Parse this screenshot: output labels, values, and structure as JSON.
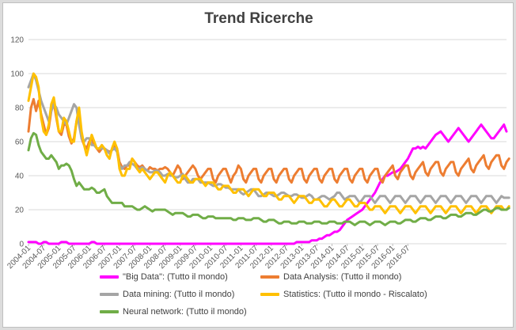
{
  "chart_data": {
    "type": "line",
    "title": "Trend Ricerche",
    "xlabel": "",
    "ylabel": "",
    "ylim": [
      0,
      120
    ],
    "yticks": [
      0,
      20,
      40,
      60,
      80,
      100,
      120
    ],
    "grid": true,
    "legend_position": "bottom",
    "x_start": "2004-01",
    "x_end": "2016-09",
    "xtick_labels": [
      "2004-01",
      "2004-07",
      "2005-01",
      "2005-07",
      "2006-01",
      "2006-07",
      "2007-01",
      "2007-07",
      "2008-01",
      "2008-07",
      "2009-01",
      "2009-07",
      "2010-01",
      "2010-07",
      "2011-01",
      "2011-07",
      "2012-01",
      "2012-07",
      "2013-01",
      "2013-07",
      "2014-01",
      "2014-07",
      "2015-01",
      "2015-07",
      "2016-01",
      "2016-07"
    ],
    "series": [
      {
        "name": "\"Big Data\": (Tutto il mondo)",
        "color": "#ff00ff",
        "values": [
          1,
          1,
          1,
          1,
          0,
          0,
          1,
          1,
          0,
          0,
          0,
          0,
          0,
          1,
          1,
          1,
          0,
          0,
          0,
          0,
          0,
          0,
          0,
          0,
          0,
          1,
          1,
          0,
          0,
          0,
          0,
          0,
          0,
          0,
          0,
          0,
          0,
          0,
          0,
          0,
          0,
          0,
          0,
          0,
          0,
          0,
          0,
          0,
          0,
          0,
          0,
          0,
          0,
          0,
          0,
          0,
          0,
          0,
          0,
          0,
          0,
          0,
          0,
          0,
          0,
          0,
          0,
          0,
          0,
          0,
          0,
          0,
          0,
          0,
          0,
          0,
          0,
          0,
          0,
          0,
          0,
          0,
          0,
          0,
          0,
          0,
          0,
          0,
          0,
          0,
          0,
          0,
          0,
          0,
          0,
          0,
          0,
          0,
          0,
          0,
          0,
          0,
          0,
          0,
          0,
          0,
          1,
          1,
          1,
          1,
          1,
          1,
          2,
          2,
          2,
          3,
          3,
          4,
          5,
          5,
          6,
          7,
          7,
          8,
          10,
          12,
          14,
          15,
          16,
          17,
          18,
          19,
          20,
          22,
          24,
          26,
          28,
          30,
          33,
          36,
          38,
          40,
          40,
          41,
          42,
          42,
          43,
          44,
          46,
          48,
          50,
          53,
          56,
          56,
          57,
          56,
          57,
          56,
          58,
          60,
          62,
          64,
          65,
          66,
          64,
          62,
          60,
          62,
          64,
          66,
          68,
          66,
          64,
          62,
          60,
          62,
          64,
          66,
          68,
          70,
          68,
          66,
          64,
          62,
          62,
          64,
          66,
          68,
          70,
          66
        ]
      },
      {
        "name": "Data Analysis: (Tutto il mondo)",
        "color": "#ed7d31",
        "values": [
          66,
          80,
          85,
          78,
          84,
          76,
          70,
          64,
          68,
          78,
          83,
          74,
          66,
          64,
          70,
          70,
          63,
          59,
          62,
          72,
          78,
          62,
          58,
          56,
          60,
          62,
          58,
          56,
          54,
          56,
          56,
          55,
          54,
          55,
          58,
          56,
          48,
          45,
          44,
          46,
          46,
          50,
          48,
          46,
          45,
          46,
          44,
          43,
          45,
          44,
          44,
          43,
          44,
          44,
          45,
          44,
          42,
          40,
          43,
          46,
          44,
          38,
          40,
          42,
          44,
          46,
          44,
          40,
          38,
          40,
          42,
          44,
          44,
          38,
          36,
          40,
          42,
          44,
          44,
          40,
          36,
          40,
          42,
          46,
          44,
          38,
          36,
          40,
          42,
          44,
          44,
          38,
          36,
          40,
          42,
          44,
          44,
          38,
          36,
          40,
          42,
          44,
          44,
          38,
          36,
          40,
          42,
          44,
          44,
          38,
          36,
          40,
          42,
          44,
          44,
          38,
          36,
          40,
          42,
          44,
          44,
          38,
          36,
          40,
          42,
          44,
          44,
          38,
          36,
          40,
          42,
          44,
          44,
          38,
          36,
          40,
          42,
          44,
          44,
          38,
          36,
          40,
          42,
          44,
          46,
          40,
          38,
          42,
          44,
          46,
          46,
          40,
          38,
          42,
          44,
          46,
          48,
          42,
          40,
          44,
          46,
          48,
          48,
          42,
          40,
          44,
          46,
          48,
          48,
          42,
          40,
          44,
          46,
          48,
          50,
          44,
          42,
          46,
          48,
          50,
          52,
          46,
          44,
          48,
          50,
          52,
          52,
          46,
          44,
          48,
          50
        ]
      },
      {
        "name": "Data mining: (Tutto il mondo)",
        "color": "#a5a5a5",
        "values": [
          92,
          96,
          100,
          96,
          90,
          84,
          80,
          76,
          72,
          78,
          82,
          80,
          76,
          74,
          72,
          70,
          74,
          78,
          82,
          80,
          70,
          62,
          60,
          62,
          62,
          58,
          58,
          56,
          56,
          56,
          56,
          55,
          53,
          55,
          56,
          54,
          46,
          44,
          46,
          46,
          48,
          47,
          46,
          44,
          44,
          45,
          44,
          43,
          42,
          42,
          43,
          43,
          42,
          40,
          40,
          41,
          40,
          40,
          39,
          39,
          40,
          41,
          38,
          36,
          36,
          38,
          38,
          38,
          36,
          36,
          36,
          36,
          35,
          34,
          34,
          35,
          35,
          34,
          33,
          33,
          32,
          32,
          32,
          32,
          30,
          29,
          30,
          31,
          32,
          32,
          30,
          28,
          28,
          29,
          30,
          30,
          29,
          28,
          28,
          29,
          30,
          30,
          29,
          28,
          28,
          29,
          29,
          28,
          27,
          27,
          28,
          29,
          28,
          26,
          26,
          27,
          28,
          28,
          27,
          26,
          27,
          28,
          30,
          30,
          28,
          26,
          27,
          28,
          28,
          28,
          26,
          24,
          26,
          28,
          28,
          28,
          26,
          24,
          26,
          28,
          28,
          28,
          26,
          24,
          26,
          28,
          28,
          28,
          26,
          24,
          26,
          28,
          28,
          28,
          26,
          24,
          26,
          28,
          28,
          28,
          26,
          24,
          26,
          28,
          28,
          28,
          26,
          24,
          26,
          28,
          28,
          28,
          26,
          24,
          26,
          28,
          28,
          28,
          26,
          24,
          26,
          28,
          28,
          28,
          26,
          24,
          26,
          28,
          27,
          27,
          27
        ]
      },
      {
        "name": "Statistics: (Tutto il mondo - Riscalato)",
        "color": "#ffc000",
        "values": [
          84,
          92,
          100,
          98,
          92,
          74,
          66,
          64,
          70,
          82,
          86,
          76,
          66,
          66,
          74,
          72,
          66,
          60,
          60,
          72,
          80,
          66,
          58,
          52,
          58,
          64,
          60,
          56,
          56,
          58,
          56,
          52,
          50,
          56,
          60,
          56,
          44,
          40,
          40,
          44,
          44,
          50,
          48,
          44,
          42,
          44,
          42,
          40,
          38,
          40,
          42,
          42,
          40,
          38,
          36,
          40,
          42,
          40,
          38,
          36,
          36,
          40,
          40,
          38,
          36,
          36,
          38,
          38,
          38,
          36,
          34,
          36,
          36,
          36,
          34,
          32,
          32,
          34,
          34,
          34,
          32,
          30,
          30,
          32,
          32,
          32,
          30,
          28,
          30,
          32,
          32,
          32,
          30,
          28,
          28,
          30,
          30,
          30,
          28,
          26,
          26,
          28,
          28,
          28,
          26,
          24,
          26,
          28,
          28,
          28,
          26,
          24,
          24,
          26,
          26,
          26,
          24,
          22,
          22,
          24,
          26,
          26,
          24,
          22,
          22,
          24,
          26,
          26,
          24,
          22,
          22,
          24,
          24,
          24,
          22,
          20,
          20,
          22,
          22,
          22,
          20,
          18,
          20,
          22,
          22,
          22,
          20,
          18,
          20,
          22,
          22,
          22,
          20,
          18,
          20,
          22,
          22,
          22,
          20,
          18,
          20,
          22,
          22,
          22,
          20,
          18,
          20,
          22,
          22,
          22,
          20,
          18,
          20,
          22,
          22,
          22,
          20,
          18,
          20,
          22,
          22,
          22,
          20,
          18,
          20,
          22,
          22,
          22,
          20,
          20,
          22
        ]
      },
      {
        "name": "Neural network: (Tutto il mondo)",
        "color": "#70ad47",
        "values": [
          55,
          62,
          65,
          64,
          58,
          54,
          52,
          50,
          50,
          52,
          50,
          48,
          44,
          46,
          46,
          47,
          46,
          43,
          38,
          34,
          36,
          34,
          32,
          32,
          32,
          33,
          32,
          30,
          30,
          31,
          32,
          28,
          26,
          24,
          24,
          24,
          24,
          24,
          22,
          22,
          22,
          22,
          21,
          20,
          20,
          21,
          22,
          21,
          20,
          19,
          20,
          20,
          20,
          20,
          20,
          19,
          18,
          17,
          18,
          18,
          18,
          18,
          17,
          16,
          16,
          17,
          17,
          17,
          16,
          15,
          15,
          16,
          16,
          16,
          15,
          15,
          15,
          15,
          15,
          15,
          15,
          14,
          14,
          15,
          15,
          15,
          14,
          14,
          14,
          15,
          15,
          15,
          14,
          13,
          13,
          14,
          14,
          14,
          13,
          12,
          12,
          13,
          13,
          13,
          12,
          12,
          12,
          13,
          13,
          13,
          12,
          12,
          12,
          13,
          13,
          13,
          12,
          12,
          12,
          13,
          13,
          13,
          12,
          12,
          12,
          13,
          13,
          13,
          12,
          11,
          12,
          13,
          13,
          13,
          12,
          11,
          12,
          13,
          13,
          13,
          12,
          11,
          12,
          13,
          13,
          13,
          12,
          12,
          13,
          14,
          14,
          14,
          13,
          13,
          14,
          15,
          15,
          15,
          14,
          14,
          15,
          16,
          16,
          16,
          15,
          15,
          16,
          17,
          17,
          17,
          16,
          16,
          17,
          18,
          18,
          18,
          17,
          17,
          18,
          19,
          20,
          20,
          19,
          19,
          20,
          21,
          21,
          20,
          20,
          20,
          21
        ]
      }
    ]
  }
}
